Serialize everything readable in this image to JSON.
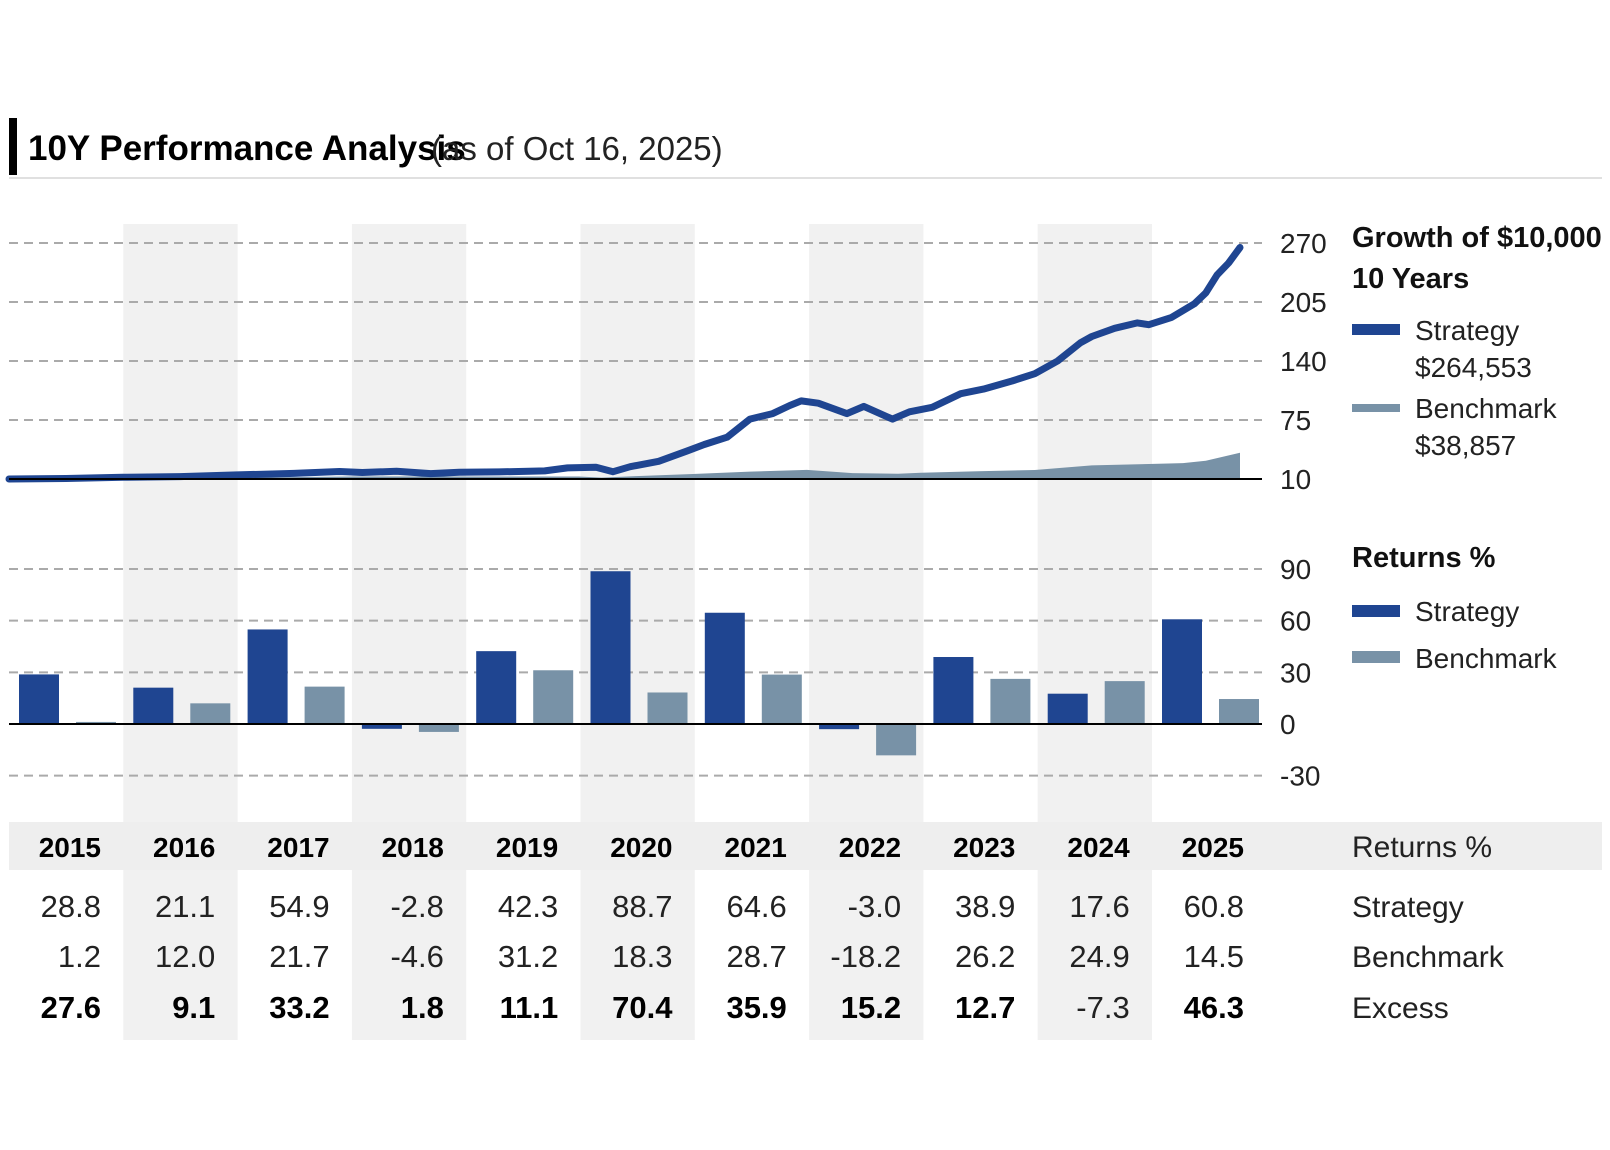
{
  "header": {
    "title": "10Y Performance Analysis",
    "subtitle": "(as of Oct 16, 2025)"
  },
  "colors": {
    "strategy": "#1f4591",
    "benchmark": "#7892a7",
    "band": "#f1f1f1",
    "header_band": "#eeeeee",
    "grid": "#aaaaaa"
  },
  "growth_legend": {
    "title_line1": "Growth of $10,000",
    "title_line2": "10 Years",
    "strategy_label": "Strategy",
    "strategy_value": "$264,553",
    "benchmark_label": "Benchmark",
    "benchmark_value": "$38,857"
  },
  "returns_legend": {
    "title": "Returns %",
    "strategy_label": "Strategy",
    "benchmark_label": "Benchmark"
  },
  "table": {
    "header_label": "Returns %",
    "row_labels": [
      "Strategy",
      "Benchmark",
      "Excess"
    ],
    "strategy": [
      "28.8",
      "21.1",
      "54.9",
      "-2.8",
      "42.3",
      "88.7",
      "64.6",
      "-3.0",
      "38.9",
      "17.6",
      "60.8"
    ],
    "benchmark": [
      "1.2",
      "12.0",
      "21.7",
      "-4.6",
      "31.2",
      "18.3",
      "28.7",
      "-18.2",
      "26.2",
      "24.9",
      "14.5"
    ],
    "excess": [
      "27.6",
      "9.1",
      "33.2",
      "1.8",
      "11.1",
      "70.4",
      "35.9",
      "15.2",
      "12.7",
      "-7.3",
      "46.3"
    ],
    "excess_bold": [
      true,
      true,
      true,
      true,
      true,
      true,
      true,
      true,
      true,
      false,
      true
    ]
  },
  "chart_data": [
    {
      "type": "line",
      "title": "Growth of $10,000",
      "unit": "thousands of $",
      "ylim": [
        10,
        270
      ],
      "yticks": [
        10,
        75,
        140,
        205,
        270
      ],
      "x_range": [
        2015,
        2025.8
      ],
      "series": [
        {
          "name": "Strategy",
          "x": [
            2015.0,
            2015.5,
            2016.0,
            2016.5,
            2017.0,
            2017.5,
            2017.9,
            2018.1,
            2018.4,
            2018.7,
            2018.95,
            2019.3,
            2019.7,
            2019.9,
            2020.15,
            2020.3,
            2020.45,
            2020.7,
            2020.95,
            2021.1,
            2021.3,
            2021.5,
            2021.7,
            2021.85,
            2021.95,
            2022.1,
            2022.35,
            2022.5,
            2022.75,
            2022.9,
            2023.1,
            2023.35,
            2023.55,
            2023.8,
            2024.0,
            2024.2,
            2024.4,
            2024.5,
            2024.7,
            2024.9,
            2025.0,
            2025.2,
            2025.4,
            2025.5,
            2025.6,
            2025.7,
            2025.8
          ],
          "values": [
            10.0,
            10.6,
            11.9,
            12.6,
            14.5,
            16.2,
            18.3,
            17.2,
            18.5,
            15.9,
            17.5,
            17.8,
            18.9,
            22.2,
            23.0,
            18.0,
            23.5,
            29.5,
            41.0,
            48.0,
            56.0,
            76.0,
            82.0,
            91.0,
            96.0,
            93.5,
            82.0,
            90.0,
            76.0,
            84.0,
            89.0,
            104.0,
            109.0,
            118.0,
            126.0,
            140.0,
            160.0,
            167.0,
            176.0,
            182.0,
            180.0,
            188.0,
            203.0,
            215.0,
            235.0,
            248.0,
            265.0
          ]
        },
        {
          "name": "Benchmark",
          "x": [
            2015.0,
            2016.0,
            2017.0,
            2018.0,
            2019.0,
            2020.0,
            2020.2,
            2020.5,
            2021.0,
            2021.5,
            2022.0,
            2022.4,
            2022.8,
            2023.0,
            2023.5,
            2024.0,
            2024.5,
            2025.0,
            2025.3,
            2025.5,
            2025.8
          ],
          "values": [
            10.0,
            10.5,
            11.4,
            12.7,
            12.7,
            12.8,
            11.5,
            13.2,
            15.5,
            18.2,
            20.0,
            16.5,
            15.8,
            16.9,
            18.5,
            19.9,
            25.0,
            26.5,
            27.5,
            30.0,
            38.9
          ]
        }
      ]
    },
    {
      "type": "bar",
      "title": "Returns %",
      "categories": [
        "2015",
        "2016",
        "2017",
        "2018",
        "2019",
        "2020",
        "2021",
        "2022",
        "2023",
        "2024",
        "2025"
      ],
      "ylim": [
        -30,
        90
      ],
      "yticks": [
        -30,
        0,
        30,
        60,
        90
      ],
      "series": [
        {
          "name": "Strategy",
          "values": [
            28.8,
            21.1,
            54.9,
            -2.8,
            42.3,
            88.7,
            64.6,
            -3.0,
            38.9,
            17.6,
            60.8
          ]
        },
        {
          "name": "Benchmark",
          "values": [
            1.2,
            12.0,
            21.7,
            -4.6,
            31.2,
            18.3,
            28.7,
            -18.2,
            26.2,
            24.9,
            14.5
          ]
        }
      ]
    }
  ]
}
